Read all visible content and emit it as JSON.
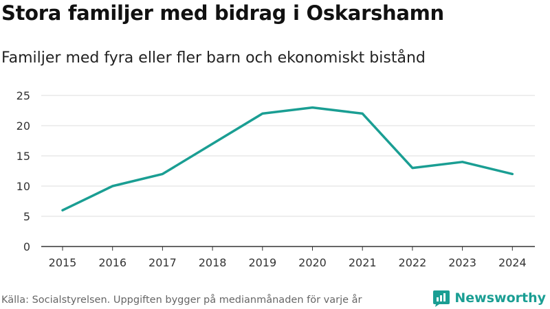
{
  "header": {
    "title": "Stora familjer med bidrag i Oskarshamn",
    "subtitle": "Familjer med fyra eller fler barn och ekonomiskt bistånd"
  },
  "footer": {
    "source": "Källa: Socialstyrelsen. Uppgiften bygger på medianmånaden för varje år",
    "brand": "Newsworthy"
  },
  "colors": {
    "line": "#1a9e93",
    "grid": "#dddddd",
    "axis": "#333333",
    "brand": "#1a9e93"
  },
  "chart_data": {
    "type": "line",
    "title": "Stora familjer med bidrag i Oskarshamn",
    "subtitle": "Familjer med fyra eller fler barn och ekonomiskt bistånd",
    "xlabel": "",
    "ylabel": "",
    "categories": [
      "2015",
      "2016",
      "2017",
      "2018",
      "2019",
      "2020",
      "2021",
      "2022",
      "2023",
      "2024"
    ],
    "series": [
      {
        "name": "Familjer",
        "values": [
          6,
          10,
          12,
          17,
          22,
          23,
          22,
          13,
          14,
          12
        ]
      }
    ],
    "ylim": [
      0,
      25
    ],
    "yticks": [
      0,
      5,
      10,
      15,
      20,
      25
    ],
    "grid": true,
    "legend": "none"
  }
}
